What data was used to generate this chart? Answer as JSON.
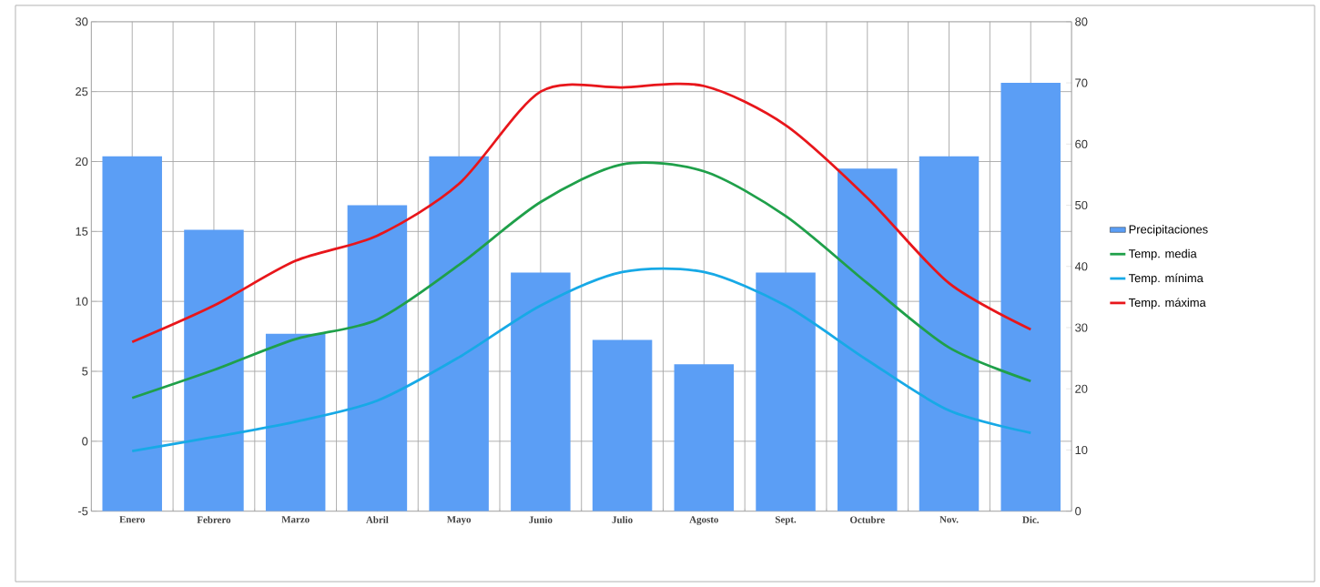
{
  "chart_data": {
    "type": "bar",
    "categories": [
      "Enero",
      "Febrero",
      "Marzo",
      "Abril",
      "Mayo",
      "Junio",
      "Julio",
      "Agosto",
      "Sept.",
      "Octubre",
      "Nov.",
      "Dic."
    ],
    "series": [
      {
        "name": "Precipitaciones",
        "axis": "y2",
        "color": "#5b9ef5",
        "values": [
          58,
          46,
          29,
          50,
          58,
          39,
          28,
          24,
          39,
          56,
          58,
          70
        ]
      },
      {
        "name": "Temp. media",
        "type": "line",
        "color": "#1fa04a",
        "values": [
          3.1,
          5.1,
          7.3,
          8.7,
          12.6,
          17.1,
          19.8,
          19.3,
          16.1,
          11.3,
          6.7,
          4.3
        ]
      },
      {
        "name": "Temp. mínima",
        "type": "line",
        "color": "#17a9e6",
        "values": [
          -0.7,
          0.3,
          1.4,
          2.9,
          6.0,
          9.7,
          12.1,
          12.1,
          9.7,
          5.8,
          2.2,
          0.6
        ]
      },
      {
        "name": "Temp. máxima",
        "type": "line",
        "color": "#e8161b",
        "values": [
          7.1,
          9.7,
          12.9,
          14.7,
          18.4,
          25.0,
          25.3,
          25.4,
          22.6,
          17.4,
          11.3,
          8.0
        ]
      }
    ],
    "ylim": [
      -5,
      30
    ],
    "yticks": [
      -5,
      0,
      5,
      10,
      15,
      20,
      25,
      30
    ],
    "y2lim": [
      0,
      80
    ],
    "y2ticks": [
      0,
      10,
      20,
      30,
      40,
      50,
      60,
      70,
      80
    ],
    "grid": true,
    "legend": "right"
  }
}
